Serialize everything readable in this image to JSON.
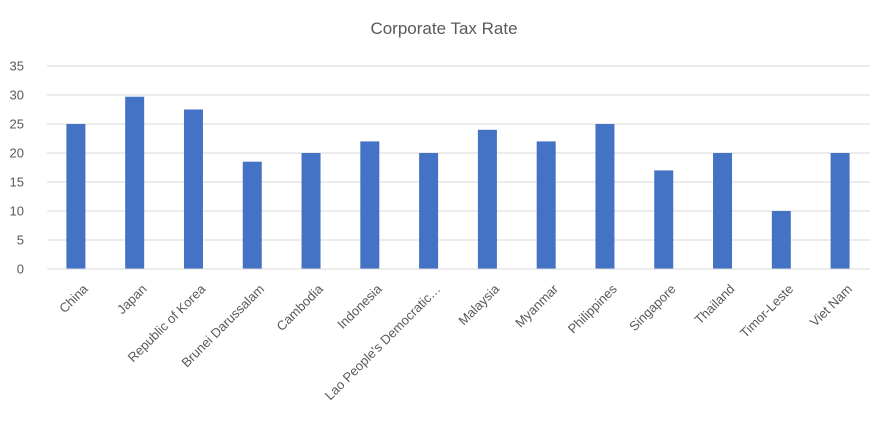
{
  "chart_data": {
    "type": "bar",
    "title": "Corporate Tax Rate",
    "xlabel": "",
    "ylabel": "",
    "ylim": [
      0,
      35
    ],
    "yticks": [
      0,
      5,
      10,
      15,
      20,
      25,
      30,
      35
    ],
    "grid": true,
    "legend": "none",
    "bar_color": "#4472C4",
    "categories": [
      "China",
      "Japan",
      "Republic of Korea",
      "Brunei Darussalam",
      "Cambodia",
      "Indonesia",
      "Lao People's Democratic…",
      "Malaysia",
      "Myanmar",
      "Philippines",
      "Singapore",
      "Thailand",
      "Timor-Leste",
      "Viet Nam"
    ],
    "values": [
      25,
      29.7,
      27.5,
      18.5,
      20,
      22,
      20,
      24,
      22,
      25,
      17,
      20,
      10,
      20
    ]
  }
}
